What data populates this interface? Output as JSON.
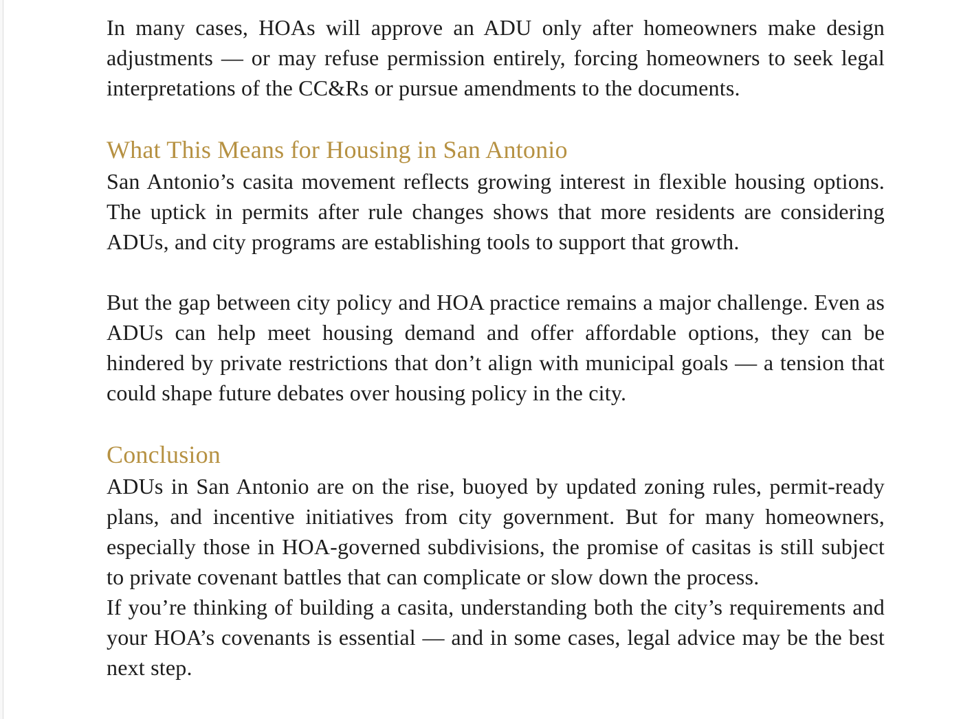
{
  "page": {
    "type": "document-article",
    "background_color": "#ffffff",
    "left_edge_line_color": "#dadada"
  },
  "colors": {
    "heading_gold": "#b69142",
    "body_text": "#1c1c1c"
  },
  "article": {
    "blocks": [
      {
        "type": "paragraph",
        "text": "In many cases, HOAs will approve an ADU only after homeowners make design adjustments — or may refuse permission entirely, forcing homeowners to seek legal interpretations of the CC&Rs or pursue amendments to the documents."
      },
      {
        "type": "heading",
        "text": "What This Means for Housing in San Antonio"
      },
      {
        "type": "paragraph",
        "text": "San Antonio’s casita movement reflects growing interest in flexible housing options. The uptick in permits after rule changes shows that more residents are considering ADUs, and city programs are establishing tools to support that growth."
      },
      {
        "type": "paragraph",
        "text": "But the gap between city policy and HOA practice remains a major challenge. Even as ADUs can help meet housing demand and offer affordable options, they can be hindered by private restrictions that don’t align with municipal goals — a tension that could shape future debates over housing policy in the city."
      },
      {
        "type": "heading",
        "text": "Conclusion"
      },
      {
        "type": "paragraph",
        "text": "ADUs in San Antonio are on the rise, buoyed by updated zoning rules, permit-ready plans, and incentive initiatives from city government. But for many homeowners, especially those in HOA-governed subdivisions, the promise of casitas is still subject to private covenant battles that can complicate or slow down the process."
      },
      {
        "type": "paragraph",
        "text": "If you’re thinking of building a casita, understanding both the city’s requirements and your HOA’s covenants is essential — and in some cases, legal advice may be the best next step."
      }
    ]
  }
}
